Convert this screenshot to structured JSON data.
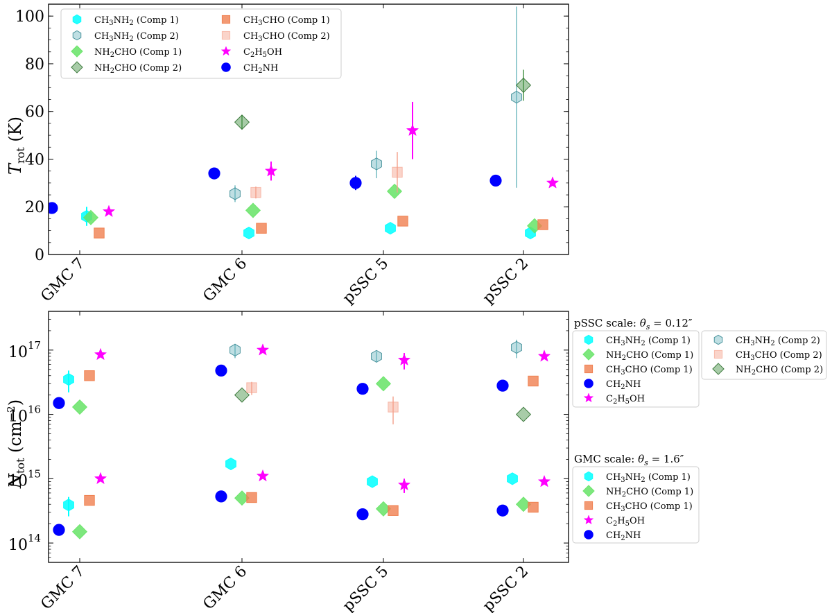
{
  "chart_data": [
    {
      "type": "scatter",
      "ylabel": "T_rot (K)",
      "ylim": [
        0,
        105
      ],
      "yscale": "linear",
      "yticks": [
        "0",
        "20",
        "40",
        "60",
        "80",
        "100"
      ],
      "categories": [
        "GMC 7",
        "GMC 6",
        "pSSC 5",
        "pSSC 2"
      ],
      "legend": {
        "placement": "upper-left",
        "columns": [
          [
            "CH3NH2 (Comp 1)",
            "CH3NH2 (Comp 2)",
            "NH2CHO (Comp 1)",
            "NH2CHO (Comp 2)"
          ],
          [
            "CH3CHO (Comp 1)",
            "CH3CHO (Comp 2)",
            "C2H5OH",
            "CH2NH"
          ]
        ]
      },
      "series": [
        {
          "key": "ch3nh2_c1",
          "name": "CH3NH2 (Comp 1)",
          "marker": "hexagon",
          "color": "#00ffff",
          "alpha": 0.85,
          "offset": 0.05,
          "values": [
            16,
            9,
            11,
            9
          ],
          "err": [
            [
              4,
              4
            ],
            [
              0,
              0
            ],
            [
              0,
              0
            ],
            [
              0,
              0
            ]
          ]
        },
        {
          "key": "ch3nh2_c2",
          "name": "CH3NH2 (Comp 2)",
          "marker": "hexagon",
          "color": "#5fb0b8",
          "alpha": 0.4,
          "offset": -0.05,
          "values": [
            null,
            25.5,
            38,
            66
          ],
          "err": [
            null,
            [
              3.5,
              3.5
            ],
            [
              6,
              5.5
            ],
            [
              38,
              38
            ]
          ]
        },
        {
          "key": "nh2cho_c1",
          "name": "NH2CHO (Comp 1)",
          "marker": "diamond",
          "color": "#66e366",
          "alpha": 0.85,
          "offset": 0.08,
          "values": [
            15.5,
            18.5,
            26.5,
            12
          ],
          "err": [
            [
              0,
              0
            ],
            [
              0,
              0
            ],
            [
              0,
              0
            ],
            [
              0,
              0
            ]
          ]
        },
        {
          "key": "nh2cho_c2",
          "name": "NH2CHO (Comp 2)",
          "marker": "diamond",
          "color": "#3f8f3f",
          "alpha": 0.45,
          "offset": 0.0,
          "values": [
            null,
            55.5,
            null,
            71
          ],
          "err": [
            null,
            [
              3,
              3
            ],
            null,
            [
              6.5,
              6.5
            ]
          ]
        },
        {
          "key": "ch3cho_c1",
          "name": "CH3CHO (Comp 1)",
          "marker": "square",
          "color": "#f08050",
          "alpha": 0.8,
          "offset": 0.14,
          "values": [
            9,
            11,
            14,
            12.5
          ],
          "err": [
            [
              0,
              0
            ],
            [
              0,
              0
            ],
            [
              0,
              0
            ],
            [
              0,
              0
            ]
          ]
        },
        {
          "key": "ch3cho_c2",
          "name": "CH3CHO (Comp 2)",
          "marker": "square",
          "color": "#f4a08a",
          "alpha": 0.45,
          "offset": 0.1,
          "values": [
            null,
            26,
            34.5,
            null
          ],
          "err": [
            null,
            [
              2.5,
              2.5
            ],
            [
              8.5,
              8.5
            ],
            null
          ]
        },
        {
          "key": "c2h5oh",
          "name": "C2H5OH",
          "marker": "star",
          "color": "#ff00ff",
          "alpha": 1.0,
          "offset": 0.21,
          "values": [
            18,
            35,
            52,
            30
          ],
          "err": [
            [
              0,
              0
            ],
            [
              4,
              4
            ],
            [
              12,
              12
            ],
            [
              0,
              0
            ]
          ]
        },
        {
          "key": "ch2nh",
          "name": "CH2NH",
          "marker": "circle",
          "color": "#0000ff",
          "alpha": 1.0,
          "offset": -0.2,
          "values": [
            19.5,
            34,
            30,
            31
          ],
          "err": [
            [
              0,
              0
            ],
            [
              0,
              0
            ],
            [
              3,
              3
            ],
            [
              0,
              0
            ]
          ]
        }
      ]
    },
    {
      "type": "scatter",
      "ylabel": "N_tot (cm^-2)",
      "ylim": [
        50000000000000.0,
        4e+17
      ],
      "yscale": "log",
      "yticks": [
        "10^14",
        "10^15",
        "10^16",
        "10^17"
      ],
      "categories": [
        "GMC 7",
        "GMC 6",
        "pSSC 5",
        "pSSC 2"
      ],
      "legend_pssc": {
        "title": "pSSC scale: θs = 0.12″",
        "columns": [
          [
            "CH3NH2 (Comp 1)",
            "NH2CHO (Comp 1)",
            "CH3CHO (Comp 1)",
            "CH2NH",
            "C2H5OH"
          ],
          [
            "CH3NH2 (Comp 2)",
            "CH3CHO (Comp 2)",
            "NH2CHO (Comp 2)"
          ]
        ]
      },
      "legend_gmc": {
        "title": "GMC scale: θs = 1.6″",
        "entries": [
          "CH3NH2 (Comp 1)",
          "NH2CHO (Comp 1)",
          "CH3CHO (Comp 1)",
          "C2H5OH",
          "CH2NH"
        ]
      },
      "series": [
        {
          "key": "ch3nh2_c1",
          "name": "CH3NH2 (Comp 1)",
          "marker": "hexagon",
          "color": "#00ffff",
          "alpha": 0.85,
          "offset": -0.08,
          "values": [
            3.5e+16,
            null,
            null,
            null
          ],
          "err": [
            [
              1.3e+16,
              1.3e+16
            ],
            null,
            null,
            null
          ]
        },
        {
          "key": "ch3nh2_c2",
          "name": "CH3NH2 (Comp 2)",
          "marker": "hexagon",
          "color": "#5fb0b8",
          "alpha": 0.4,
          "offset": -0.05,
          "values": [
            null,
            1e+17,
            8e+16,
            1.1e+17
          ],
          "err": [
            null,
            [
              2.5e+16,
              2.5e+16
            ],
            [
              1.5e+16,
              1.5e+16
            ],
            [
              3.5e+16,
              3.5e+16
            ]
          ]
        },
        {
          "key": "nh2cho_c1",
          "name": "NH2CHO (Comp 1)",
          "marker": "diamond",
          "color": "#66e366",
          "alpha": 0.85,
          "offset": 0.0,
          "values": [
            1.3e+16,
            null,
            3e+16,
            null
          ],
          "err": [
            [
              0,
              0
            ],
            null,
            [
              0,
              0
            ],
            null
          ]
        },
        {
          "key": "nh2cho_c2",
          "name": "NH2CHO (Comp 2)",
          "marker": "diamond",
          "color": "#3f8f3f",
          "alpha": 0.45,
          "offset": 0.0,
          "values": [
            null,
            2e+16,
            null,
            1e+16
          ],
          "err": [
            null,
            [
              0,
              0
            ],
            null,
            [
              0,
              0
            ]
          ]
        },
        {
          "key": "ch3cho_c1",
          "name": "CH3CHO (Comp 1)",
          "marker": "square",
          "color": "#f08050",
          "alpha": 0.8,
          "offset": 0.07,
          "values": [
            4e+16,
            null,
            null,
            3.3e+16
          ],
          "err": [
            [
              0,
              0
            ],
            null,
            null,
            [
              0,
              0
            ]
          ]
        },
        {
          "key": "ch3cho_c2",
          "name": "CH3CHO (Comp 2)",
          "marker": "square",
          "color": "#f4a08a",
          "alpha": 0.45,
          "offset": 0.07,
          "values": [
            null,
            2.6e+16,
            1.3e+16,
            null
          ],
          "err": [
            null,
            [
              6000000000000000.0,
              6000000000000000.0
            ],
            [
              6000000000000000.0,
              6000000000000000.0
            ],
            null
          ]
        },
        {
          "key": "c2h5oh",
          "name": "C2H5OH",
          "marker": "star",
          "color": "#ff00ff",
          "alpha": 1.0,
          "offset": 0.15,
          "values": [
            8.5e+16,
            1e+17,
            7e+16,
            8e+16
          ],
          "err": [
            [
              0,
              0
            ],
            [
              0,
              0
            ],
            [
              2e+16,
              2e+16
            ],
            [
              0,
              0
            ]
          ]
        },
        {
          "key": "ch2nh",
          "name": "CH2NH",
          "marker": "circle",
          "color": "#0000ff",
          "alpha": 1.0,
          "offset": -0.15,
          "values": [
            1.5e+16,
            4.8e+16,
            2.5e+16,
            2.8e+16
          ],
          "err": [
            [
              0,
              0
            ],
            [
              0,
              0
            ],
            [
              0,
              0
            ],
            [
              0,
              0
            ]
          ]
        },
        {
          "key": "g_ch3nh2_c1",
          "name": "CH3NH2 (Comp 1)",
          "marker": "hexagon",
          "color": "#00ffff",
          "alpha": 0.85,
          "offset": -0.08,
          "values": [
            390000000000000.0,
            1700000000000000.0,
            900000000000000.0,
            1000000000000000.0
          ],
          "err": [
            [
              130000000000000.0,
              130000000000000.0
            ],
            [
              0,
              0
            ],
            [
              0,
              0
            ],
            [
              0,
              0
            ]
          ]
        },
        {
          "key": "g_nh2cho_c1",
          "name": "NH2CHO (Comp 1)",
          "marker": "diamond",
          "color": "#66e366",
          "alpha": 0.85,
          "offset": 0.0,
          "values": [
            150000000000000.0,
            500000000000000.0,
            340000000000000.0,
            400000000000000.0
          ],
          "err": [
            [
              0,
              0
            ],
            [
              0,
              0
            ],
            [
              0,
              0
            ],
            [
              0,
              0
            ]
          ]
        },
        {
          "key": "g_ch3cho_c1",
          "name": "CH3CHO (Comp 1)",
          "marker": "square",
          "color": "#f08050",
          "alpha": 0.8,
          "offset": 0.07,
          "values": [
            460000000000000.0,
            510000000000000.0,
            320000000000000.0,
            360000000000000.0
          ],
          "err": [
            [
              0,
              0
            ],
            [
              0,
              0
            ],
            [
              0,
              0
            ],
            [
              0,
              0
            ]
          ]
        },
        {
          "key": "g_c2h5oh",
          "name": "C2H5OH",
          "marker": "star",
          "color": "#ff00ff",
          "alpha": 1.0,
          "offset": 0.15,
          "values": [
            1000000000000000.0,
            1100000000000000.0,
            800000000000000.0,
            900000000000000.0
          ],
          "err": [
            [
              0,
              0
            ],
            [
              0,
              0
            ],
            [
              200000000000000.0,
              200000000000000.0
            ],
            [
              0,
              0
            ]
          ]
        },
        {
          "key": "g_ch2nh",
          "name": "CH2NH",
          "marker": "circle",
          "color": "#0000ff",
          "alpha": 1.0,
          "offset": -0.15,
          "values": [
            160000000000000.0,
            530000000000000.0,
            280000000000000.0,
            320000000000000.0
          ],
          "err": [
            [
              0,
              0
            ],
            [
              0,
              0
            ],
            [
              0,
              0
            ],
            [
              0,
              0
            ]
          ]
        }
      ]
    }
  ]
}
